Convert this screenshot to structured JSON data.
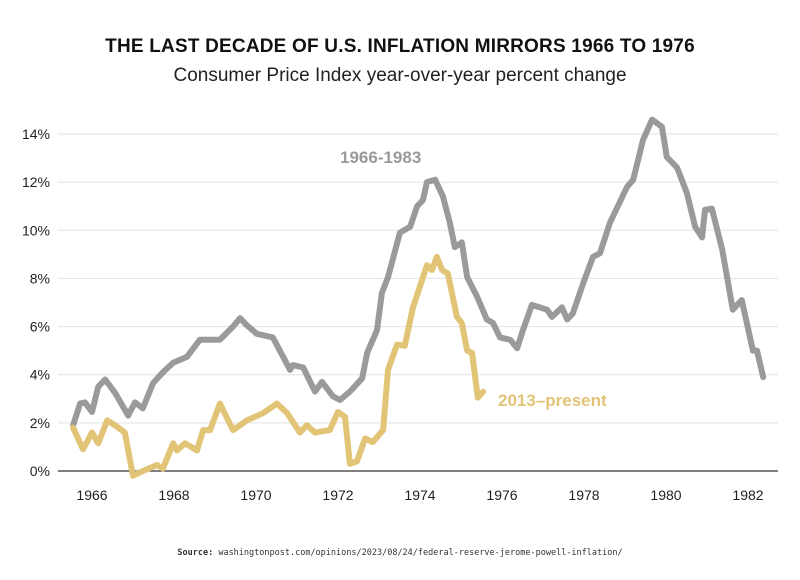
{
  "chart_data": {
    "type": "line",
    "title": "THE LAST DECADE OF U.S. INFLATION MIRRORS 1966 TO 1976",
    "subtitle": "Consumer Price Index year-over-year percent change",
    "xlabel": "",
    "ylabel": "",
    "xlim": [
      1965.3,
      1983.0
    ],
    "ylim": [
      0,
      14
    ],
    "grid": true,
    "x_ticks": [
      "1966",
      "1968",
      "1970",
      "1972",
      "1974",
      "1976",
      "1978",
      "1980",
      "1982"
    ],
    "y_ticks": [
      "0%",
      "2%",
      "4%",
      "6%",
      "8%",
      "10%",
      "12%",
      "14%"
    ],
    "series": [
      {
        "name": "1966-1983",
        "color": "#9a9a9a",
        "x": [
          1965.54,
          1965.71,
          1965.83,
          1966.0,
          1966.15,
          1966.32,
          1966.56,
          1966.8,
          1966.88,
          1967.05,
          1967.24,
          1967.49,
          1967.73,
          1967.98,
          1968.32,
          1968.63,
          1969.12,
          1969.44,
          1969.61,
          1969.78,
          1970.02,
          1970.41,
          1970.66,
          1970.83,
          1970.9,
          1971.15,
          1971.44,
          1971.61,
          1971.88,
          1972.05,
          1972.29,
          1972.59,
          1972.71,
          1972.95,
          1973.07,
          1973.22,
          1973.51,
          1973.76,
          1973.93,
          1974.07,
          1974.17,
          1974.37,
          1974.56,
          1974.73,
          1974.85,
          1975.02,
          1975.15,
          1975.39,
          1975.63,
          1975.78,
          1975.95,
          1976.2,
          1976.37,
          1976.51,
          1976.73,
          1977.1,
          1977.22,
          1977.46,
          1977.59,
          1977.73,
          1977.98,
          1978.22,
          1978.39,
          1978.63,
          1979.05,
          1979.2,
          1979.44,
          1979.66,
          1979.9,
          1980.02,
          1980.27,
          1980.51,
          1980.71,
          1980.88,
          1980.95,
          1981.12,
          1981.37,
          1981.63,
          1981.85,
          1982.12,
          1982.22,
          1982.37
        ],
        "y": [
          1.9,
          2.8,
          2.85,
          2.45,
          3.5,
          3.8,
          3.25,
          2.55,
          2.3,
          2.85,
          2.6,
          3.65,
          4.1,
          4.5,
          4.75,
          5.45,
          5.45,
          6.0,
          6.35,
          6.05,
          5.7,
          5.55,
          4.75,
          4.2,
          4.4,
          4.3,
          3.3,
          3.7,
          3.1,
          2.95,
          3.3,
          3.85,
          4.9,
          5.85,
          7.4,
          8.05,
          9.9,
          10.15,
          11.0,
          11.25,
          12.0,
          12.1,
          11.4,
          10.3,
          9.3,
          9.5,
          8.05,
          7.25,
          6.3,
          6.15,
          5.55,
          5.45,
          5.1,
          5.85,
          6.9,
          6.7,
          6.4,
          6.8,
          6.3,
          6.55,
          7.8,
          8.9,
          9.05,
          10.3,
          11.8,
          12.1,
          13.75,
          14.6,
          14.3,
          13.05,
          12.6,
          11.55,
          10.15,
          9.7,
          10.85,
          10.9,
          9.2,
          6.7,
          7.1,
          5.0,
          5.0,
          3.9
        ]
      },
      {
        "name": "2013–present",
        "color": "#e2c476",
        "x": [
          1965.54,
          1965.78,
          1966.0,
          1966.15,
          1966.37,
          1966.56,
          1966.8,
          1967.0,
          1967.24,
          1967.59,
          1967.73,
          1967.98,
          1968.07,
          1968.27,
          1968.56,
          1968.71,
          1968.88,
          1969.12,
          1969.44,
          1969.78,
          1970.17,
          1970.51,
          1970.76,
          1971.07,
          1971.24,
          1971.44,
          1971.8,
          1972.0,
          1972.17,
          1972.29,
          1972.46,
          1972.66,
          1972.85,
          1973.1,
          1973.22,
          1973.44,
          1973.63,
          1973.83,
          1974.17,
          1974.29,
          1974.41,
          1974.54,
          1974.68,
          1974.9,
          1975.02,
          1975.15,
          1975.27,
          1975.41,
          1975.54
        ],
        "y": [
          1.8,
          0.9,
          1.6,
          1.15,
          2.1,
          1.9,
          1.6,
          -0.2,
          0.0,
          0.25,
          0.1,
          1.15,
          0.85,
          1.15,
          0.85,
          1.7,
          1.7,
          2.8,
          1.7,
          2.1,
          2.4,
          2.8,
          2.4,
          1.6,
          1.9,
          1.6,
          1.7,
          2.45,
          2.25,
          0.3,
          0.4,
          1.35,
          1.2,
          1.7,
          4.2,
          5.25,
          5.2,
          6.8,
          8.55,
          8.35,
          8.9,
          8.35,
          8.2,
          6.4,
          6.15,
          5.0,
          4.9,
          3.05,
          3.3
        ]
      }
    ]
  },
  "source": {
    "label": "Source:",
    "text": "washingtonpost.com/opinions/2023/08/24/federal-reserve-jerome-powell-inflation/"
  }
}
